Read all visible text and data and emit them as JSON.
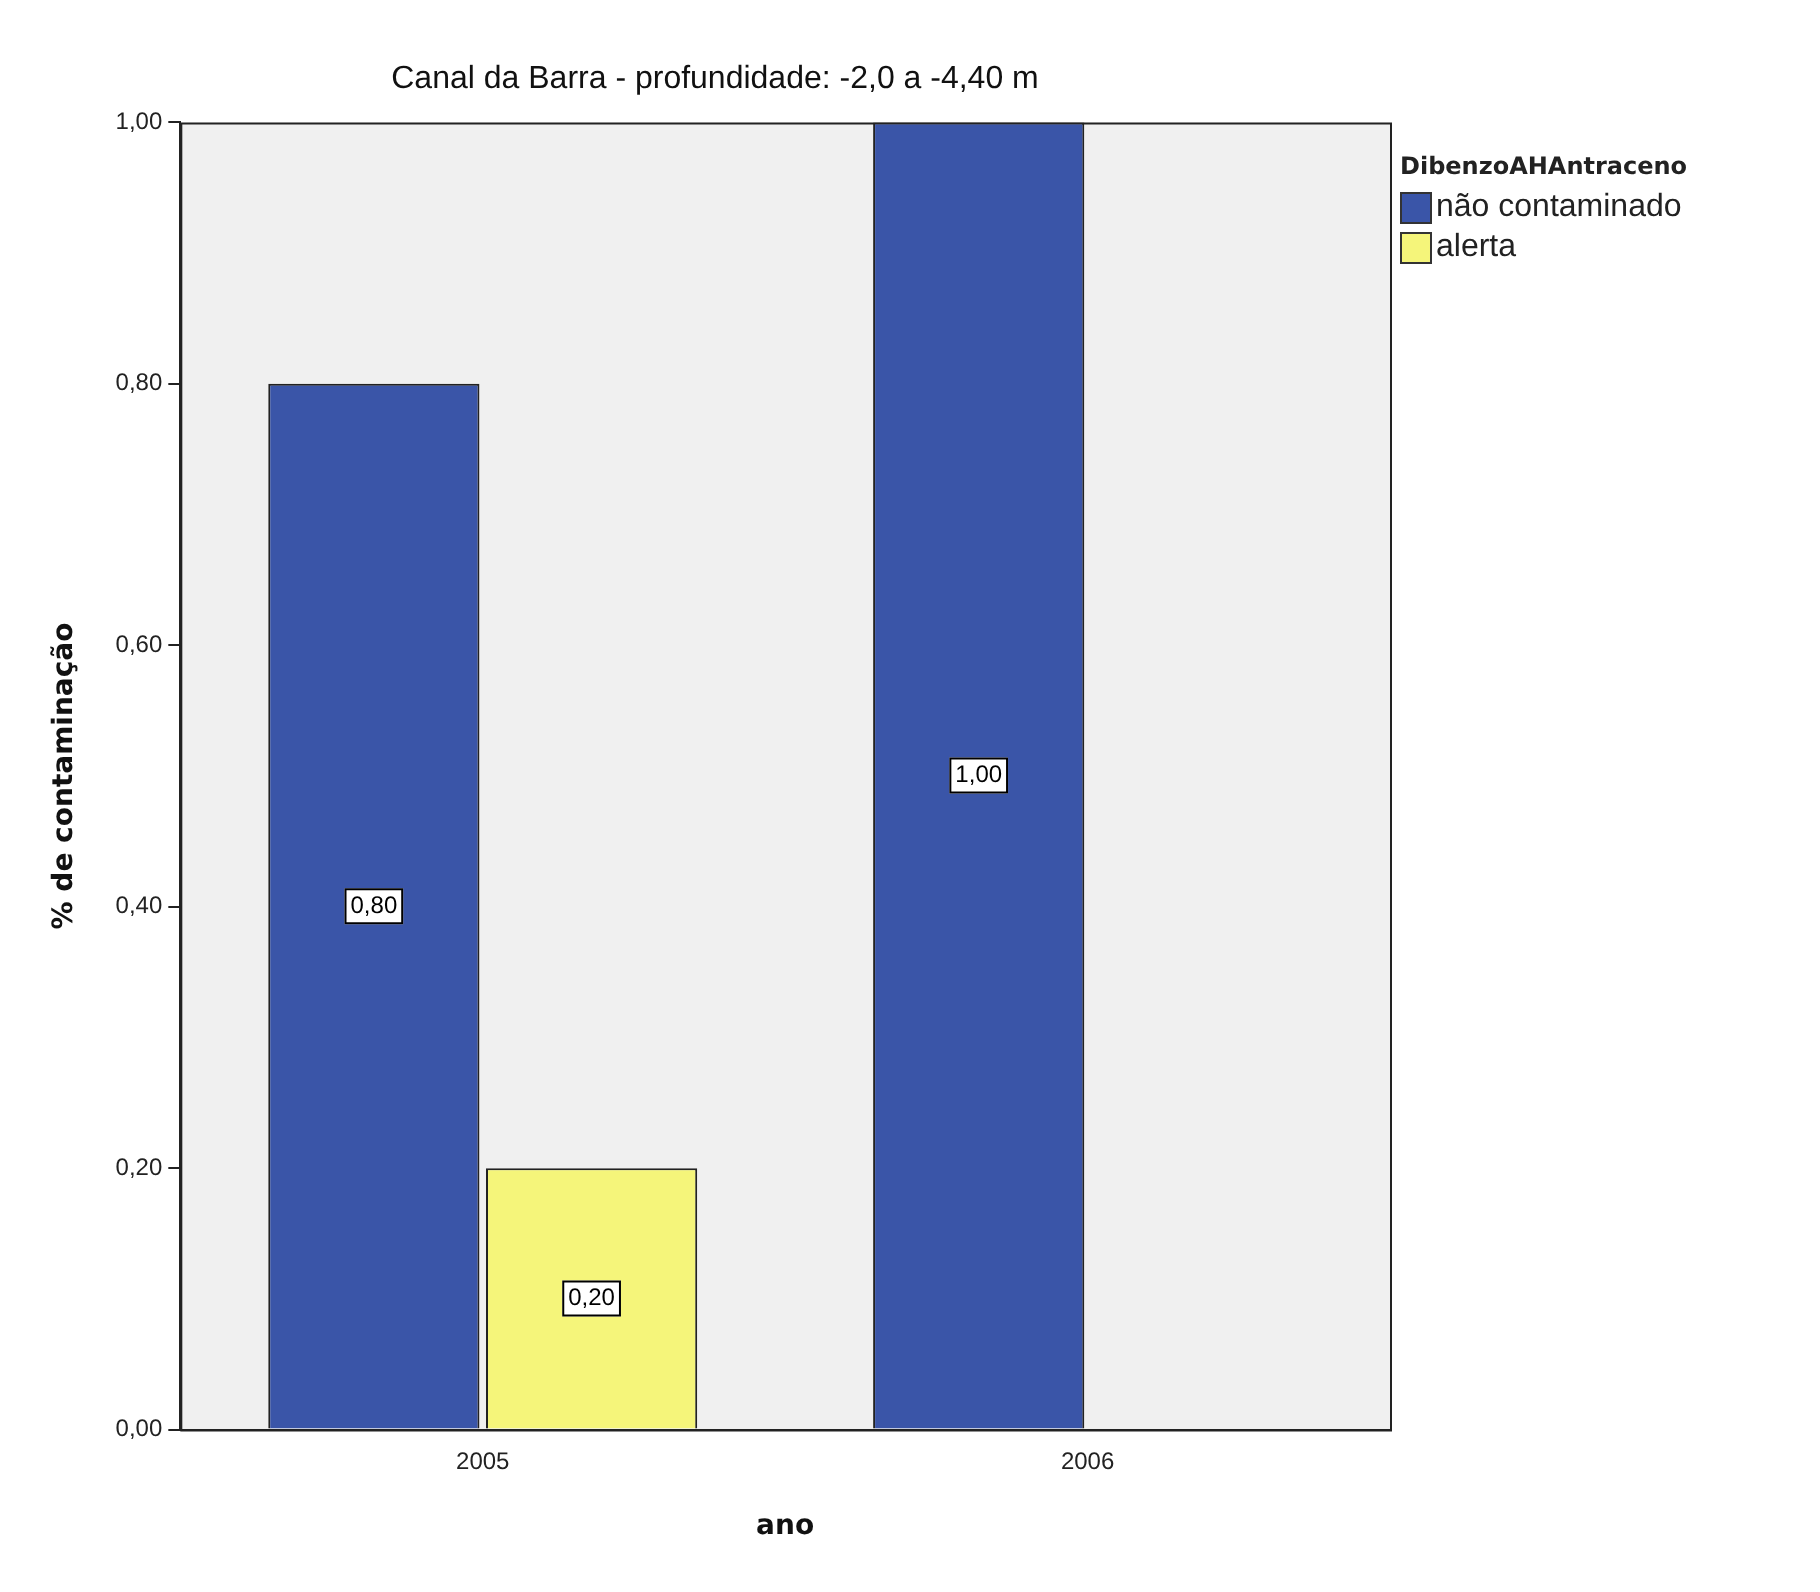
{
  "chart_data": {
    "type": "bar",
    "title": "Canal da Barra - profundidade: -2,0 a -4,40 m",
    "xlabel": "ano",
    "ylabel": "% de contaminação",
    "legend_title": "DibenzoAHAntraceno",
    "legend": "top right",
    "grid": false,
    "categories": [
      "2005",
      "2006"
    ],
    "ylim": [
      0,
      1
    ],
    "yticks": [
      {
        "value": 0,
        "label": "0,00"
      },
      {
        "value": 0.2,
        "label": "0,20"
      },
      {
        "value": 0.4,
        "label": "0,40"
      },
      {
        "value": 0.6,
        "label": "0,60"
      },
      {
        "value": 0.8,
        "label": "0,80"
      },
      {
        "value": 1,
        "label": "1,00"
      }
    ],
    "series": [
      {
        "name": "não contaminado",
        "color": "#3a55a8",
        "values": [
          0.8,
          1.0
        ],
        "value_labels": [
          "0,80",
          "1,00"
        ]
      },
      {
        "name": "alerta",
        "color": "#f5f57a",
        "values": [
          0.2,
          null
        ],
        "value_labels": [
          "0,20",
          null
        ]
      }
    ]
  }
}
